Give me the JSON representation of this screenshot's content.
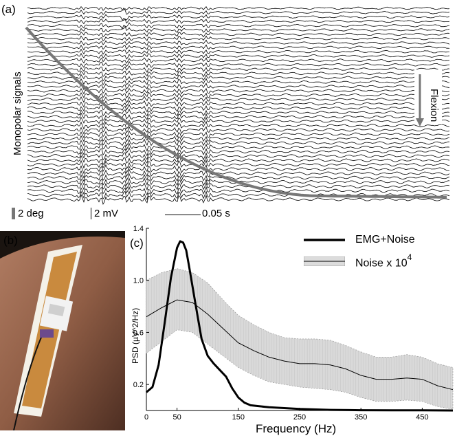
{
  "panel_a": {
    "label": "(a)",
    "ylabel": "Monopolar signals",
    "annotation": "Flexion",
    "scale_deg": "2 deg",
    "scale_mv": "2 mV",
    "scale_time": "0.05 s",
    "trace_count": 45
  },
  "panel_b": {
    "label": "(b)"
  },
  "chart_data": {
    "type": "line",
    "panel_label": "(c)",
    "xlabel": "Frequency (Hz)",
    "ylabel": "PSD (µV^2/Hz)",
    "xlim": [
      0,
      500
    ],
    "ylim": [
      0,
      1.4
    ],
    "xticks": [
      0,
      50,
      150,
      250,
      350,
      450
    ],
    "xtick_labels": [
      "0",
      "50",
      "150",
      "250",
      "350",
      "450"
    ],
    "yticks": [
      0.2,
      0.6,
      1.0,
      1.4
    ],
    "ytick_labels": [
      "0.2",
      "0.6",
      "1.0",
      "1.4"
    ],
    "legend": [
      {
        "name": "EMG+Noise",
        "style": "thick black line"
      },
      {
        "name": "Noise x 10",
        "superscript": "4",
        "style": "thin line with gray band"
      }
    ],
    "series": [
      {
        "name": "EMG+Noise",
        "color": "#000000",
        "x": [
          0,
          10,
          20,
          30,
          40,
          50,
          55,
          60,
          65,
          70,
          80,
          90,
          100,
          110,
          120,
          130,
          140,
          150,
          160,
          170,
          180,
          200,
          250,
          300,
          350,
          400,
          450,
          500
        ],
        "y": [
          0.14,
          0.18,
          0.35,
          0.68,
          1.02,
          1.25,
          1.3,
          1.29,
          1.23,
          1.1,
          0.82,
          0.55,
          0.42,
          0.36,
          0.31,
          0.26,
          0.17,
          0.1,
          0.06,
          0.04,
          0.035,
          0.025,
          0.012,
          0.005,
          0.002,
          0.001,
          0.001,
          0.0
        ]
      },
      {
        "name": "Noise x 10 4",
        "color": "#000000",
        "band_color": "#d9d9d9",
        "x": [
          0,
          25,
          50,
          75,
          100,
          125,
          150,
          175,
          200,
          225,
          250,
          275,
          300,
          325,
          350,
          375,
          400,
          425,
          450,
          475,
          500
        ],
        "y": [
          0.72,
          0.79,
          0.85,
          0.83,
          0.74,
          0.63,
          0.52,
          0.46,
          0.41,
          0.38,
          0.36,
          0.36,
          0.35,
          0.32,
          0.27,
          0.24,
          0.24,
          0.25,
          0.24,
          0.19,
          0.16
        ],
        "upper": [
          1.0,
          1.06,
          1.09,
          1.06,
          0.98,
          0.85,
          0.73,
          0.66,
          0.6,
          0.56,
          0.55,
          0.55,
          0.54,
          0.5,
          0.45,
          0.41,
          0.41,
          0.43,
          0.41,
          0.36,
          0.33
        ],
        "lower": [
          0.44,
          0.53,
          0.62,
          0.6,
          0.51,
          0.42,
          0.33,
          0.27,
          0.22,
          0.2,
          0.18,
          0.17,
          0.16,
          0.14,
          0.1,
          0.07,
          0.07,
          0.08,
          0.07,
          0.03,
          0.01
        ]
      }
    ]
  }
}
